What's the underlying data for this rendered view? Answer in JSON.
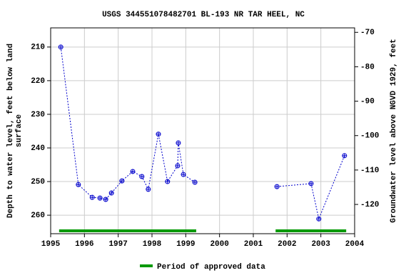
{
  "chart_data": {
    "type": "line",
    "title": "USGS 344551078482701 BL-193 NR TAR HEEL, NC",
    "ylabel_lines": [
      "Depth to water level, feet below land",
      "surface"
    ],
    "y2label": "Groundwater level above NGVD 1929, feet",
    "xlim": [
      1995,
      2004
    ],
    "xticks": [
      1995,
      1996,
      1997,
      1998,
      1999,
      2000,
      2001,
      2002,
      2003,
      2004
    ],
    "ylim": [
      204.3,
      265.5
    ],
    "yticks": [
      210,
      220,
      230,
      240,
      250,
      260
    ],
    "y_inverted": true,
    "y2lim": [
      -128.5,
      -68.7
    ],
    "y2ticks": [
      -70,
      -80,
      -90,
      -100,
      -110,
      -120
    ],
    "grid": true,
    "series": [
      {
        "color": "#0000cc",
        "x": [
          1995.3,
          1995.82,
          1996.23,
          1996.46,
          1996.63,
          1996.8,
          1997.11,
          1997.43,
          1997.7,
          1997.89,
          1998.19,
          1998.46,
          1998.76,
          1998.78,
          1998.93,
          1999.27
        ],
        "values": [
          210,
          250.9,
          254.7,
          254.9,
          255.3,
          253.4,
          249.8,
          247.0,
          248.5,
          252.3,
          235.9,
          250.0,
          245.3,
          238.5,
          247.9,
          250.2
        ]
      },
      {
        "color": "#0000cc",
        "x": [
          2001.7,
          2002.71,
          2002.94,
          2003.7
        ],
        "values": [
          251.5,
          250.6,
          261.1,
          242.3
        ]
      }
    ],
    "approved": {
      "name": "Period of approved data",
      "color": "#009900",
      "periods": [
        [
          1995.25,
          1999.31
        ],
        [
          2001.66,
          2003.75
        ]
      ]
    }
  }
}
